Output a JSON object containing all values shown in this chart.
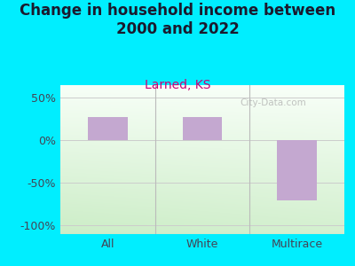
{
  "title": "Change in household income between\n2000 and 2022",
  "subtitle": "Larned, KS",
  "categories": [
    "All",
    "White",
    "Multirace"
  ],
  "values": [
    28,
    27,
    -70
  ],
  "bar_color": "#c4a8d0",
  "title_fontsize": 12,
  "subtitle_fontsize": 10,
  "tick_fontsize": 9,
  "ylim": [
    -110,
    65
  ],
  "yticks": [
    -100,
    -50,
    0,
    50
  ],
  "ytick_labels": [
    "-100%",
    "-50%",
    "0%",
    "50%"
  ],
  "background_outer": "#00eeff",
  "watermark": "City-Data.com",
  "bar_width": 0.42,
  "title_color": "#1a1a2e",
  "subtitle_color": "#cc0077",
  "tick_color": "#444455",
  "grid_color": "#cccccc",
  "separator_color": "#bbbbbb"
}
